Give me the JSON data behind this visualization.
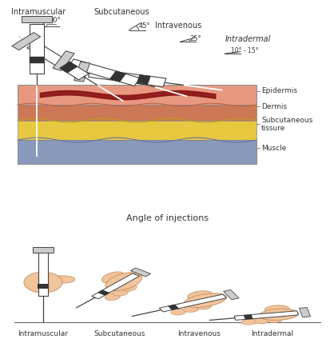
{
  "bg_color": "#FFFFFF",
  "text_color": "#333333",
  "outline_color": "#555555",
  "skin_hand_color": "#F2C49B",
  "skin_hand_dark": "#C8956A",
  "epi_color": "#E89880",
  "derm_color": "#CC7755",
  "sub_color": "#E8C840",
  "mus_color": "#8899BB",
  "vein_color": "#8B1515",
  "syringe_white": "#FFFFFF",
  "syringe_gray": "#CCCCCC",
  "syringe_dark": "#444444",
  "bottom_title": "Angle of injections",
  "bottom_labels": [
    "Intramuscular",
    "Subcutaneous",
    "Intravenous",
    "Intradermal"
  ],
  "layer_labels": [
    "Epidermis",
    "Dermis",
    "Subcutaneous\ntissure",
    "Muscle"
  ],
  "im_label": "Intramuscular",
  "sc_label": "Subcutaneous",
  "iv_label": "Intravenous",
  "id_label": "Intradermal",
  "im_angle": "90°",
  "sc_angle": "45°",
  "iv_angle": "25°",
  "id_angle": "10° - 15°"
}
